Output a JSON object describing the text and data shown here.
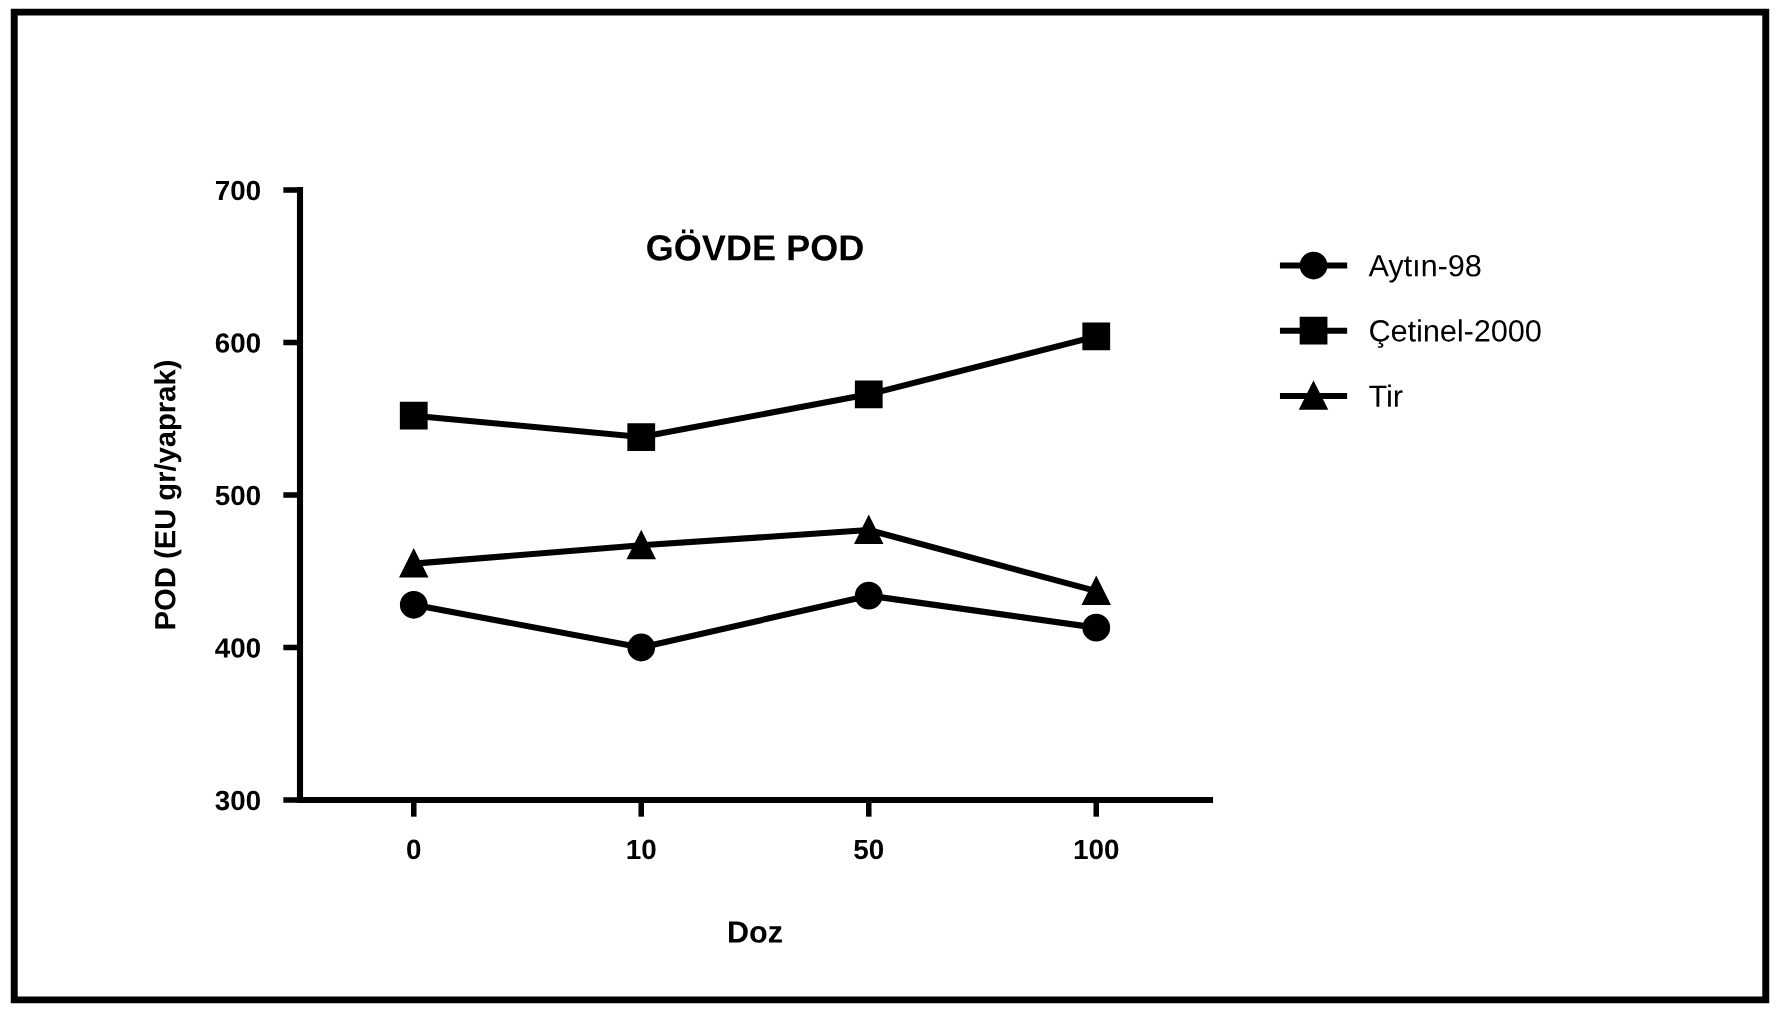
{
  "chart_data": {
    "type": "line",
    "title": "GÖVDE POD",
    "xlabel": "Doz",
    "ylabel": "POD (EU gr/yaprak)",
    "categories": [
      "0",
      "10",
      "50",
      "100"
    ],
    "series": [
      {
        "name": "Aytın-98",
        "color": "#000000",
        "marker": "circle",
        "values": [
          428,
          400,
          434,
          413
        ]
      },
      {
        "name": "Çetinel-2000",
        "color": "#000000",
        "marker": "square",
        "values": [
          552,
          538,
          566,
          604
        ]
      },
      {
        "name": "Tir",
        "color": "#000000",
        "marker": "triangle",
        "values": [
          455,
          467,
          477,
          437
        ]
      }
    ],
    "ylim": [
      300,
      700
    ],
    "yticks": [
      300,
      400,
      500,
      600,
      700
    ],
    "grid": false,
    "legend": "right",
    "line_style": "solid"
  }
}
